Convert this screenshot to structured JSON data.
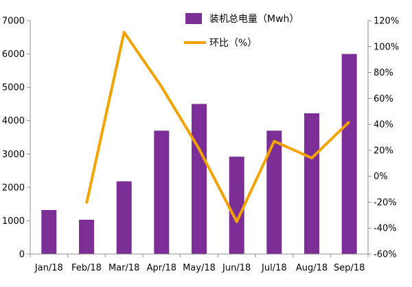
{
  "chart_data": {
    "type": "bar+line",
    "categories": [
      "Jan/18",
      "Feb/18",
      "Mar/18",
      "Apr/18",
      "May/18",
      "Jun/18",
      "Jul/18",
      "Aug/18",
      "Sep/18"
    ],
    "series": [
      {
        "name": "装机总电量（Mwh）",
        "type": "bar",
        "axis": "left",
        "color": "#7b2f96",
        "values": [
          1320,
          1030,
          2180,
          3700,
          4500,
          2920,
          3700,
          4220,
          6000
        ]
      },
      {
        "name": "环比（%）",
        "type": "line",
        "axis": "right",
        "color": "#f2a300",
        "values": [
          null,
          -21,
          111,
          69,
          21,
          -35,
          27,
          14,
          42
        ]
      }
    ],
    "y_left": {
      "lim": [
        0,
        7000
      ],
      "ticks": [
        "0",
        "1000",
        "2000",
        "3000",
        "4000",
        "5000",
        "6000",
        "7000"
      ]
    },
    "y_right": {
      "lim": [
        -60,
        120
      ],
      "ticks": [
        "-60%",
        "-40%",
        "-20%",
        "0%",
        "20%",
        "40%",
        "60%",
        "80%",
        "100%",
        "120%"
      ]
    },
    "grid": false,
    "legend_position": "top-right"
  }
}
